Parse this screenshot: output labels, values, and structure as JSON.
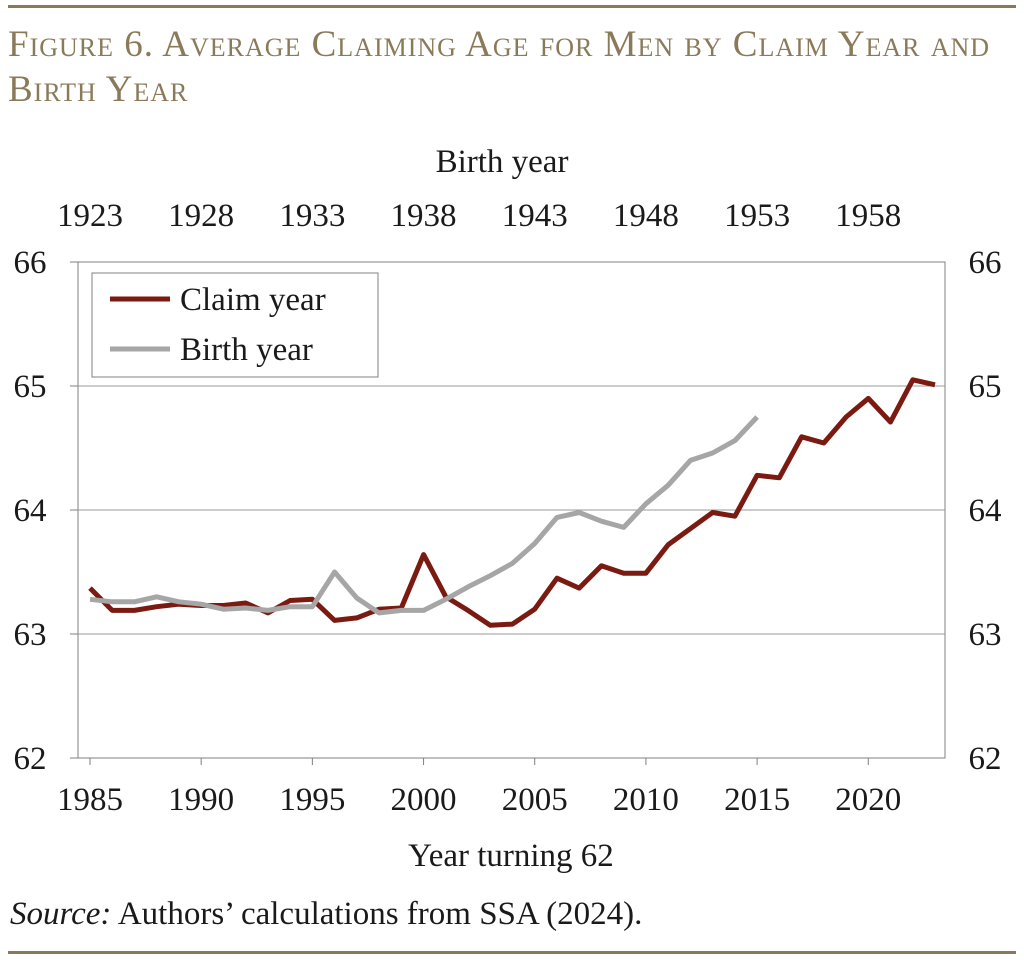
{
  "figure": {
    "title": "Figure 6. Average Claiming Age for Men by Claim Year and Birth Year",
    "source_label": "Source:",
    "source_text": " Authors’ calculations from SSA (2024)."
  },
  "colors": {
    "accent": "#8a7a5a",
    "claim_series": "#7b1a10",
    "birth_series": "#a6a6a6"
  },
  "chart_data": {
    "type": "line",
    "title": "Figure 6. Average Claiming Age for Men by Claim Year and Birth Year",
    "xlabel": "Year turning 62",
    "x2label": "Birth year",
    "x_ticks": [
      1985,
      1990,
      1995,
      2000,
      2005,
      2010,
      2015,
      2020
    ],
    "x2_ticks": [
      1923,
      1928,
      1933,
      1938,
      1943,
      1948,
      1953,
      1958
    ],
    "xlim": [
      1985,
      2024
    ],
    "ylim": [
      62,
      66
    ],
    "y_ticks": [
      62,
      63,
      64,
      65,
      66
    ],
    "grid": true,
    "legend_position": "top-left",
    "series": [
      {
        "name": "Claim year",
        "x": [
          1985,
          1986,
          1987,
          1988,
          1989,
          1990,
          1991,
          1992,
          1993,
          1994,
          1995,
          1996,
          1997,
          1998,
          1999,
          2000,
          2001,
          2002,
          2003,
          2004,
          2005,
          2006,
          2007,
          2008,
          2009,
          2010,
          2011,
          2012,
          2013,
          2014,
          2015,
          2016,
          2017,
          2018,
          2019,
          2020,
          2021,
          2022,
          2023
        ],
        "values": [
          63.37,
          63.19,
          63.19,
          63.22,
          63.24,
          63.23,
          63.23,
          63.25,
          63.17,
          63.27,
          63.28,
          63.11,
          63.13,
          63.2,
          63.21,
          63.64,
          63.3,
          63.19,
          63.07,
          63.08,
          63.2,
          63.45,
          63.37,
          63.55,
          63.49,
          63.49,
          63.72,
          63.85,
          63.98,
          63.95,
          64.28,
          64.26,
          64.59,
          64.54,
          64.75,
          64.9,
          64.71,
          65.05,
          65.01
        ]
      },
      {
        "name": "Birth year",
        "x": [
          1985,
          1986,
          1987,
          1988,
          1989,
          1990,
          1991,
          1992,
          1993,
          1994,
          1995,
          1996,
          1997,
          1998,
          1999,
          2000,
          2001,
          2002,
          2003,
          2004,
          2005,
          2006,
          2007,
          2008,
          2009,
          2010,
          2011,
          2012,
          2013,
          2014,
          2015
        ],
        "values": [
          63.28,
          63.26,
          63.26,
          63.3,
          63.26,
          63.24,
          63.2,
          63.21,
          63.19,
          63.22,
          63.22,
          63.5,
          63.29,
          63.17,
          63.19,
          63.19,
          63.28,
          63.38,
          63.47,
          63.57,
          63.73,
          63.94,
          63.98,
          63.91,
          63.86,
          64.05,
          64.2,
          64.4,
          64.46,
          64.56,
          64.75
        ]
      }
    ]
  }
}
